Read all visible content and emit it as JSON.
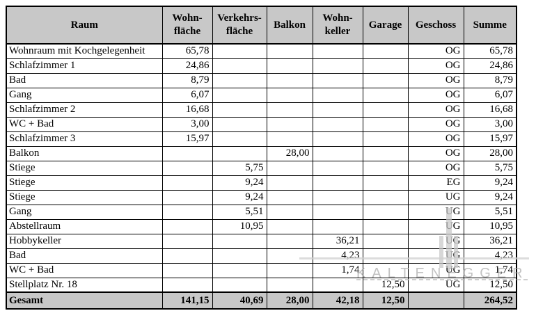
{
  "table": {
    "columns": [
      {
        "key": "raum",
        "label": "Raum"
      },
      {
        "key": "wohnflaeche",
        "label": "Wohn-\nfläche"
      },
      {
        "key": "verkehrsflaeche",
        "label": "Verkehrs-\nfläche"
      },
      {
        "key": "balkon",
        "label": "Balkon"
      },
      {
        "key": "wohnkeller",
        "label": "Wohn-\nkeller"
      },
      {
        "key": "garage",
        "label": "Garage"
      },
      {
        "key": "geschoss",
        "label": "Geschoss"
      },
      {
        "key": "summe",
        "label": "Summe"
      }
    ],
    "rows": [
      {
        "raum": "Wohnraum mit Kochgelegenheit",
        "wohnflaeche": "65,78",
        "verkehrsflaeche": "",
        "balkon": "",
        "wohnkeller": "",
        "garage": "",
        "geschoss": "OG",
        "summe": "65,78"
      },
      {
        "raum": "Schlafzimmer 1",
        "wohnflaeche": "24,86",
        "verkehrsflaeche": "",
        "balkon": "",
        "wohnkeller": "",
        "garage": "",
        "geschoss": "OG",
        "summe": "24,86"
      },
      {
        "raum": "Bad",
        "wohnflaeche": "8,79",
        "verkehrsflaeche": "",
        "balkon": "",
        "wohnkeller": "",
        "garage": "",
        "geschoss": "OG",
        "summe": "8,79"
      },
      {
        "raum": "Gang",
        "wohnflaeche": "6,07",
        "verkehrsflaeche": "",
        "balkon": "",
        "wohnkeller": "",
        "garage": "",
        "geschoss": "OG",
        "summe": "6,07"
      },
      {
        "raum": "Schlafzimmer 2",
        "wohnflaeche": "16,68",
        "verkehrsflaeche": "",
        "balkon": "",
        "wohnkeller": "",
        "garage": "",
        "geschoss": "OG",
        "summe": "16,68"
      },
      {
        "raum": "WC + Bad",
        "wohnflaeche": "3,00",
        "verkehrsflaeche": "",
        "balkon": "",
        "wohnkeller": "",
        "garage": "",
        "geschoss": "OG",
        "summe": "3,00"
      },
      {
        "raum": "Schlafzimmer 3",
        "wohnflaeche": "15,97",
        "verkehrsflaeche": "",
        "balkon": "",
        "wohnkeller": "",
        "garage": "",
        "geschoss": "OG",
        "summe": "15,97"
      },
      {
        "raum": "Balkon",
        "wohnflaeche": "",
        "verkehrsflaeche": "",
        "balkon": "28,00",
        "wohnkeller": "",
        "garage": "",
        "geschoss": "OG",
        "summe": "28,00"
      },
      {
        "raum": "Stiege",
        "wohnflaeche": "",
        "verkehrsflaeche": "5,75",
        "balkon": "",
        "wohnkeller": "",
        "garage": "",
        "geschoss": "OG",
        "summe": "5,75"
      },
      {
        "raum": "Stiege",
        "wohnflaeche": "",
        "verkehrsflaeche": "9,24",
        "balkon": "",
        "wohnkeller": "",
        "garage": "",
        "geschoss": "EG",
        "summe": "9,24"
      },
      {
        "raum": "Stiege",
        "wohnflaeche": "",
        "verkehrsflaeche": "9,24",
        "balkon": "",
        "wohnkeller": "",
        "garage": "",
        "geschoss": "UG",
        "summe": "9,24"
      },
      {
        "raum": "Gang",
        "wohnflaeche": "",
        "verkehrsflaeche": "5,51",
        "balkon": "",
        "wohnkeller": "",
        "garage": "",
        "geschoss": "UG",
        "summe": "5,51"
      },
      {
        "raum": "Abstellraum",
        "wohnflaeche": "",
        "verkehrsflaeche": "10,95",
        "balkon": "",
        "wohnkeller": "",
        "garage": "",
        "geschoss": "UG",
        "summe": "10,95"
      },
      {
        "raum": "Hobbykeller",
        "wohnflaeche": "",
        "verkehrsflaeche": "",
        "balkon": "",
        "wohnkeller": "36,21",
        "garage": "",
        "geschoss": "UG",
        "summe": "36,21"
      },
      {
        "raum": "Bad",
        "wohnflaeche": "",
        "verkehrsflaeche": "",
        "balkon": "",
        "wohnkeller": "4,23",
        "garage": "",
        "geschoss": "UG",
        "summe": "4,23"
      },
      {
        "raum": "WC + Bad",
        "wohnflaeche": "",
        "verkehrsflaeche": "",
        "balkon": "",
        "wohnkeller": "1,74",
        "garage": "",
        "geschoss": "UG",
        "summe": "1,74"
      },
      {
        "raum": "Stellplatz Nr. 18",
        "wohnflaeche": "",
        "verkehrsflaeche": "",
        "balkon": "",
        "wohnkeller": "",
        "garage": "12,50",
        "geschoss": "UG",
        "summe": "12,50"
      }
    ],
    "total": {
      "raum": "Gesamt",
      "wohnflaeche": "141,15",
      "verkehrsflaeche": "40,69",
      "balkon": "28,00",
      "wohnkeller": "42,18",
      "garage": "12,50",
      "geschoss": "",
      "summe": "264,52"
    }
  },
  "watermark": {
    "text": "KALTENEGGER"
  },
  "colors": {
    "header_bg": "#c8c8c8",
    "border": "#000000",
    "watermark_gray": "#a5a5a5"
  }
}
